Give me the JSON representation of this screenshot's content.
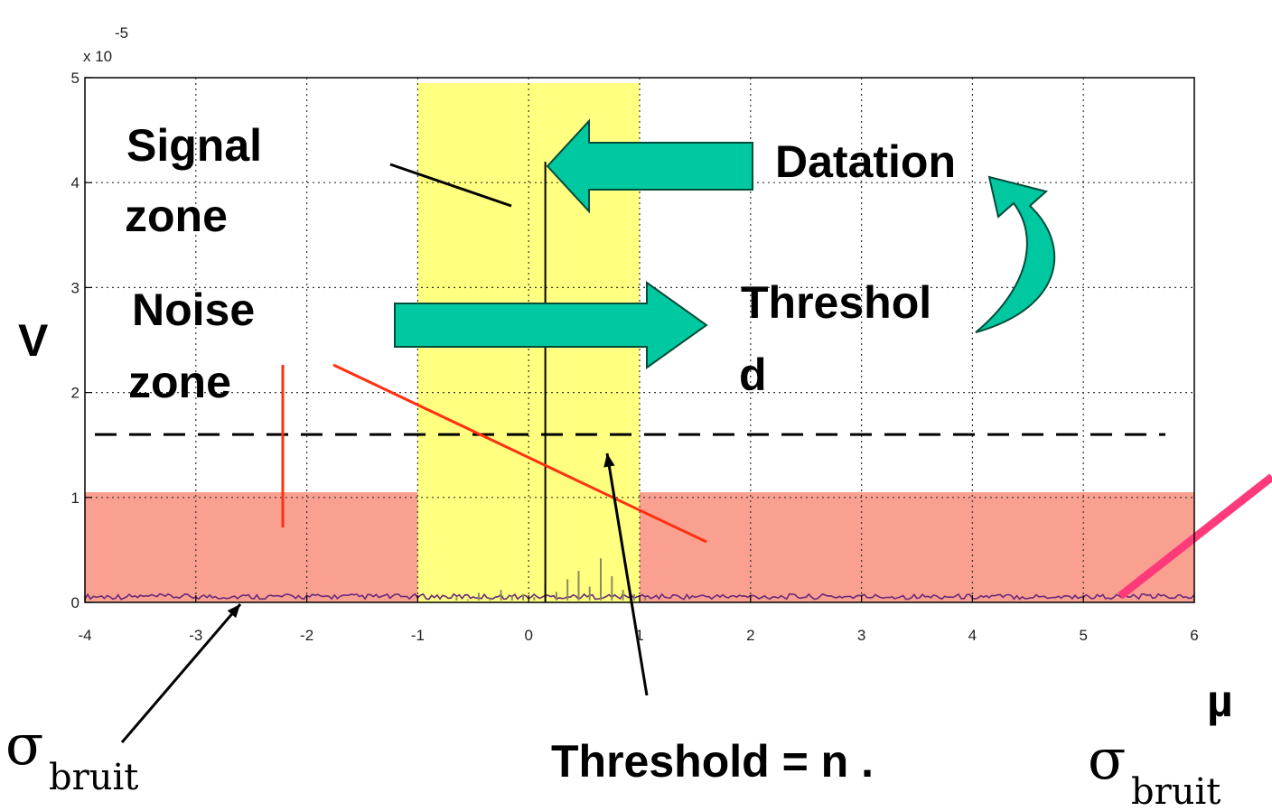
{
  "chart_data": {
    "type": "line",
    "xlim": [
      -4,
      6
    ],
    "ylim": [
      0,
      5
    ],
    "y_exponent_label": "x 10",
    "y_exponent_power": "-5",
    "x_ticks": [
      -4,
      -3,
      -2,
      -1,
      0,
      1,
      2,
      3,
      4,
      5,
      6
    ],
    "y_ticks": [
      0,
      1,
      2,
      3,
      4,
      5
    ],
    "grid": true,
    "ylabel": "V",
    "xlabel": "µ",
    "threshold_level": 1.6,
    "peak": {
      "x": 0.15,
      "y": 4.2
    },
    "signal_zone": [
      -1,
      1
    ],
    "noise_band_level": 1.05,
    "colors": {
      "signal_zone": "#ffff80",
      "noise_zone": "#f9a090",
      "arrow": "#00c8a0",
      "red_line": "#ff3010",
      "pink_line": "#ff3a7a",
      "trace": "#6a2a7a"
    },
    "annotations": {
      "signal_zone": [
        "Signal",
        "zone"
      ],
      "noise_zone": [
        "Noise",
        "zone"
      ],
      "datation": "Datation",
      "threshold": [
        "Threshol",
        "d"
      ],
      "formula": "Threshold = n .",
      "sigma": "σ",
      "bruit": "bruit"
    }
  }
}
